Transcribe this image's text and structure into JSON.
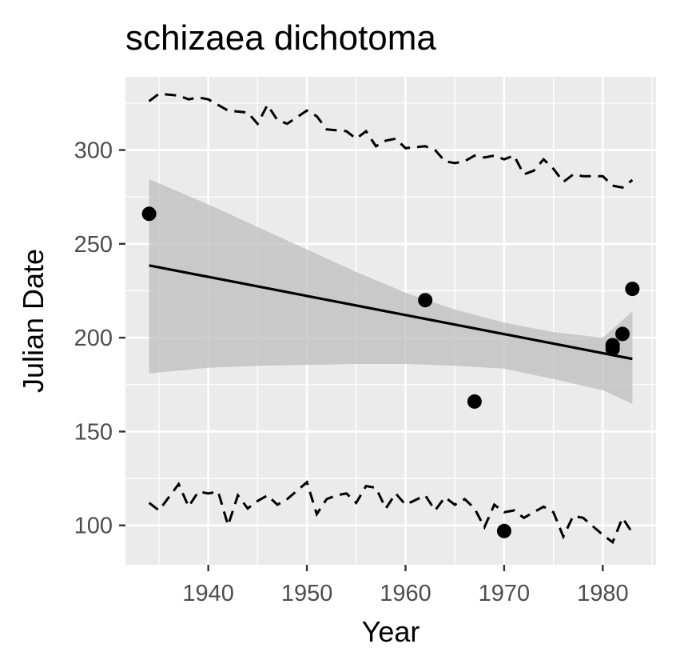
{
  "chart_data": {
    "type": "scatter",
    "title": "schizaea dichotoma",
    "xlabel": "Year",
    "ylabel": "Julian Date",
    "xlim": [
      1931.6,
      1985.4
    ],
    "ylim": [
      79,
      339
    ],
    "x_ticks": [
      1940,
      1950,
      1960,
      1970,
      1980
    ],
    "y_ticks": [
      100,
      150,
      200,
      250,
      300
    ],
    "grid": true,
    "legend": "none",
    "colors": {
      "panel_background": "#ebebeb",
      "grid": "#ffffff",
      "points": "#000000",
      "lines": "#000000",
      "ribbon": "#bebebe",
      "tick_label": "#4d4d4d"
    },
    "points": [
      {
        "x": 1934,
        "y": 266
      },
      {
        "x": 1962,
        "y": 220
      },
      {
        "x": 1967,
        "y": 166
      },
      {
        "x": 1970,
        "y": 97
      },
      {
        "x": 1981,
        "y": 194
      },
      {
        "x": 1981,
        "y": 196
      },
      {
        "x": 1982,
        "y": 202
      },
      {
        "x": 1983,
        "y": 226
      }
    ],
    "trend": [
      {
        "x": 1934,
        "y": 238.5
      },
      {
        "x": 1983,
        "y": 188.7
      }
    ],
    "confidence_band": {
      "x": [
        1934,
        1940,
        1945,
        1950,
        1955,
        1960,
        1965,
        1970,
        1975,
        1980,
        1983
      ],
      "upper": [
        284.5,
        271,
        259,
        247,
        235,
        224,
        215,
        208,
        203,
        200,
        214
      ],
      "lower": [
        181,
        184,
        185,
        185.5,
        186,
        186,
        185,
        183.5,
        178,
        172,
        164.7
      ]
    },
    "upper_dashed": {
      "x": [
        1934,
        1935,
        1937,
        1938,
        1939,
        1940,
        1942,
        1944,
        1945,
        1946,
        1947,
        1948,
        1950,
        1951,
        1952,
        1954,
        1955,
        1956,
        1957,
        1958,
        1959,
        1960,
        1962,
        1963,
        1964,
        1965,
        1966,
        1967,
        1968,
        1969,
        1970,
        1971,
        1972,
        1973,
        1974,
        1975,
        1976,
        1977,
        1978,
        1980,
        1981,
        1982,
        1983
      ],
      "y": [
        326,
        330,
        329,
        327,
        328,
        327,
        321,
        320,
        314,
        324,
        316,
        314,
        321,
        318,
        311,
        310,
        306,
        310,
        302,
        305,
        306,
        301,
        302,
        300,
        294,
        293,
        294,
        297,
        296,
        297,
        295,
        297,
        287,
        289,
        295,
        290,
        283,
        287,
        286,
        286,
        281,
        280,
        284
      ]
    },
    "lower_dashed": {
      "x": [
        1934,
        1935,
        1937,
        1938,
        1939,
        1940,
        1941,
        1942,
        1943,
        1944,
        1945,
        1946,
        1947,
        1948,
        1950,
        1951,
        1952,
        1953,
        1954,
        1955,
        1956,
        1957,
        1958,
        1959,
        1960,
        1962,
        1963,
        1964,
        1965,
        1966,
        1967,
        1968,
        1969,
        1970,
        1971,
        1972,
        1973,
        1974,
        1975,
        1976,
        1977,
        1978,
        1980,
        1981,
        1982,
        1983
      ],
      "y": [
        112,
        108,
        122,
        110,
        118,
        117,
        118,
        100,
        116,
        109,
        113,
        116,
        111,
        114,
        123,
        106,
        114,
        116,
        117,
        112,
        121,
        120,
        109,
        117,
        111,
        116,
        108,
        115,
        111,
        114,
        109,
        99,
        111,
        107,
        108,
        104,
        107,
        110,
        107,
        94,
        105,
        104,
        95,
        91,
        104,
        96
      ]
    }
  }
}
